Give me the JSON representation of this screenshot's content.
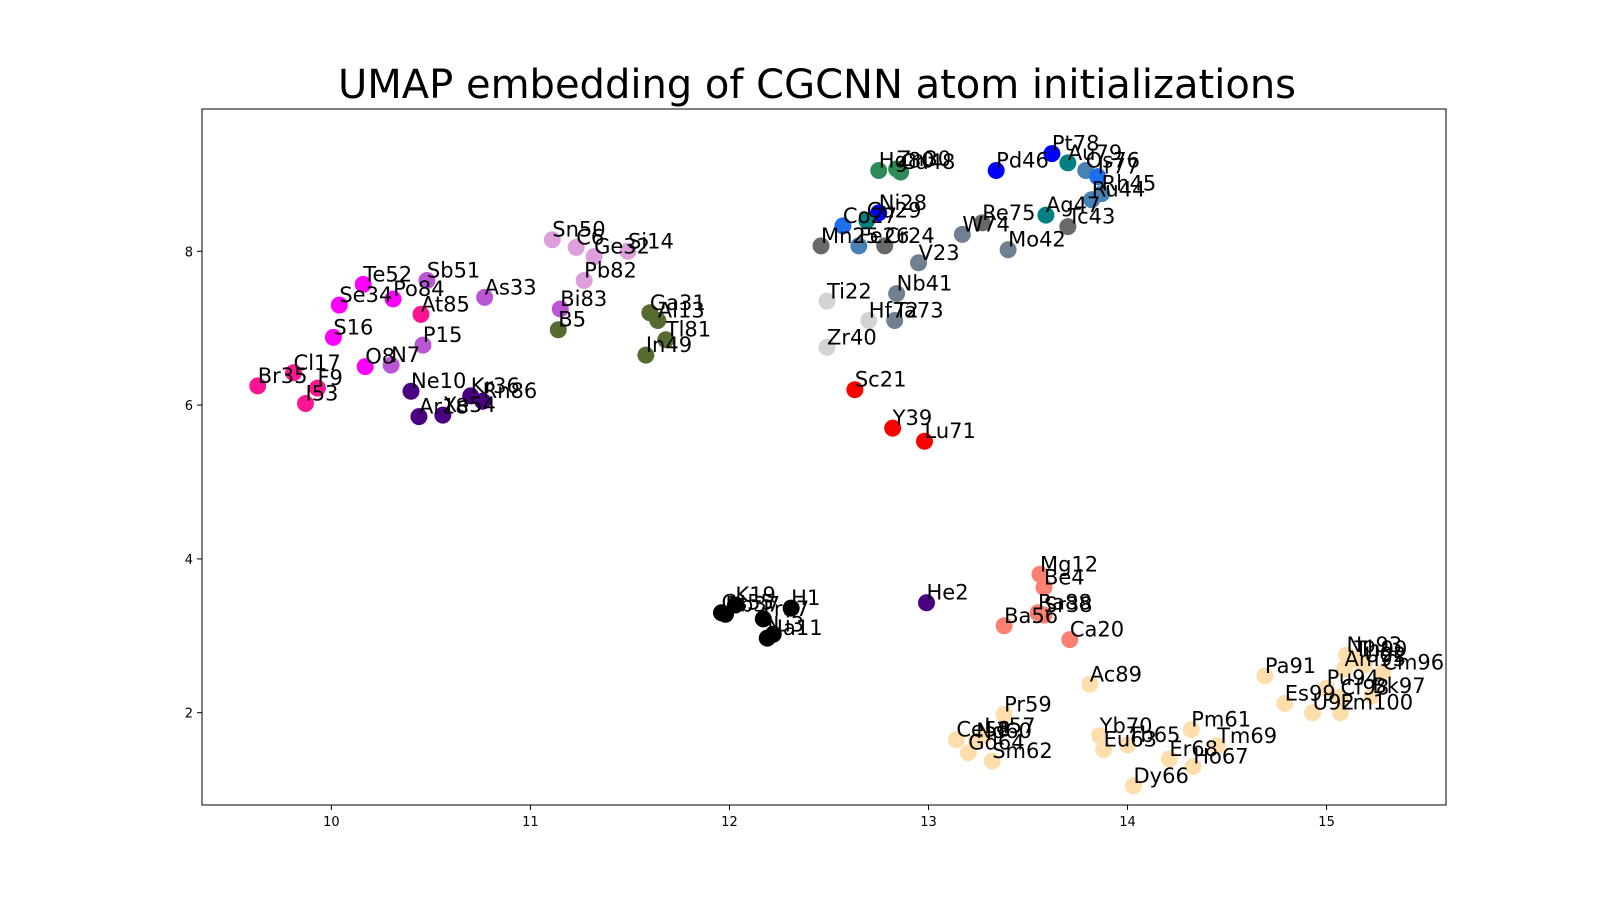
{
  "chart_data": {
    "type": "scatter",
    "title": "UMAP embedding of CGCNN atom initializations",
    "xlabel": "",
    "ylabel": "",
    "xlim": [
      9.35,
      15.6
    ],
    "ylim": [
      0.8,
      9.85
    ],
    "grid": false,
    "x_ticks": [
      10,
      11,
      12,
      13,
      14,
      15
    ],
    "y_ticks": [
      2,
      4,
      6,
      8
    ],
    "points": [
      {
        "label": "Pt78",
        "x": 13.62,
        "y": 9.27,
        "color": "#0000ff"
      },
      {
        "label": "Au79",
        "x": 13.7,
        "y": 9.15,
        "color": "#008080"
      },
      {
        "label": "Os76",
        "x": 13.79,
        "y": 9.05,
        "color": "#4682b4"
      },
      {
        "label": "Ir77",
        "x": 13.85,
        "y": 8.97,
        "color": "#1e6ff0"
      },
      {
        "label": "Pd46",
        "x": 13.34,
        "y": 9.05,
        "color": "#0000ff"
      },
      {
        "label": "Rh45",
        "x": 13.87,
        "y": 8.75,
        "color": "#4682b4"
      },
      {
        "label": "Ru44",
        "x": 13.82,
        "y": 8.67,
        "color": "#4682b4"
      },
      {
        "label": "Hg80",
        "x": 12.75,
        "y": 9.05,
        "color": "#2e8b57"
      },
      {
        "label": "Zn30",
        "x": 12.84,
        "y": 9.07,
        "color": "#2e8b57"
      },
      {
        "label": "Cd48",
        "x": 12.86,
        "y": 9.03,
        "color": "#2e8b57"
      },
      {
        "label": "Ag47",
        "x": 13.59,
        "y": 8.47,
        "color": "#008080"
      },
      {
        "label": "Tc43",
        "x": 13.7,
        "y": 8.32,
        "color": "#696969"
      },
      {
        "label": "Re75",
        "x": 13.27,
        "y": 8.37,
        "color": "#696969"
      },
      {
        "label": "W74",
        "x": 13.17,
        "y": 8.22,
        "color": "#708090"
      },
      {
        "label": "Mo42",
        "x": 13.4,
        "y": 8.02,
        "color": "#708090"
      },
      {
        "label": "Ni28",
        "x": 12.75,
        "y": 8.5,
        "color": "#0000ff"
      },
      {
        "label": "Cu29",
        "x": 12.69,
        "y": 8.4,
        "color": "#008080"
      },
      {
        "label": "Co27",
        "x": 12.57,
        "y": 8.33,
        "color": "#1e6ff0"
      },
      {
        "label": "Mn25",
        "x": 12.46,
        "y": 8.07,
        "color": "#696969"
      },
      {
        "label": "Fe26",
        "x": 12.65,
        "y": 8.07,
        "color": "#4682b4"
      },
      {
        "label": "Cr24",
        "x": 12.78,
        "y": 8.07,
        "color": "#696969"
      },
      {
        "label": "V23",
        "x": 12.95,
        "y": 7.85,
        "color": "#708090"
      },
      {
        "label": "Ti22",
        "x": 12.49,
        "y": 7.35,
        "color": "#d3d3d3"
      },
      {
        "label": "Nb41",
        "x": 12.84,
        "y": 7.45,
        "color": "#708090"
      },
      {
        "label": "Hf72",
        "x": 12.7,
        "y": 7.1,
        "color": "#d3d3d3"
      },
      {
        "label": "Ta73",
        "x": 12.83,
        "y": 7.1,
        "color": "#708090"
      },
      {
        "label": "Zr40",
        "x": 12.49,
        "y": 6.75,
        "color": "#d3d3d3"
      },
      {
        "label": "Sc21",
        "x": 12.63,
        "y": 6.2,
        "color": "#ff0000"
      },
      {
        "label": "Y39",
        "x": 12.82,
        "y": 5.7,
        "color": "#ff0000"
      },
      {
        "label": "Lu71",
        "x": 12.98,
        "y": 5.53,
        "color": "#ff0000"
      },
      {
        "label": "Sn50",
        "x": 11.11,
        "y": 8.15,
        "color": "#dda0dd"
      },
      {
        "label": "C6",
        "x": 11.23,
        "y": 8.05,
        "color": "#dda0dd"
      },
      {
        "label": "Ge32",
        "x": 11.32,
        "y": 7.93,
        "color": "#dda0dd"
      },
      {
        "label": "Si14",
        "x": 11.49,
        "y": 8.0,
        "color": "#dda0dd"
      },
      {
        "label": "Pb82",
        "x": 11.27,
        "y": 7.62,
        "color": "#dda0dd"
      },
      {
        "label": "Bi83",
        "x": 11.15,
        "y": 7.25,
        "color": "#ba55d3"
      },
      {
        "label": "B5",
        "x": 11.14,
        "y": 6.98,
        "color": "#556b2f"
      },
      {
        "label": "Ga31",
        "x": 11.6,
        "y": 7.2,
        "color": "#556b2f"
      },
      {
        "label": "Al13",
        "x": 11.64,
        "y": 7.1,
        "color": "#556b2f"
      },
      {
        "label": "Tl81",
        "x": 11.68,
        "y": 6.85,
        "color": "#556b2f"
      },
      {
        "label": "In49",
        "x": 11.58,
        "y": 6.65,
        "color": "#556b2f"
      },
      {
        "label": "Te52",
        "x": 10.16,
        "y": 7.57,
        "color": "#ff00ff"
      },
      {
        "label": "Sb51",
        "x": 10.48,
        "y": 7.62,
        "color": "#ba55d3"
      },
      {
        "label": "As33",
        "x": 10.77,
        "y": 7.4,
        "color": "#ba55d3"
      },
      {
        "label": "Se34",
        "x": 10.04,
        "y": 7.3,
        "color": "#ff00ff"
      },
      {
        "label": "Po84",
        "x": 10.31,
        "y": 7.38,
        "color": "#ff00ff"
      },
      {
        "label": "At85",
        "x": 10.45,
        "y": 7.18,
        "color": "#ff1493"
      },
      {
        "label": "S16",
        "x": 10.01,
        "y": 6.88,
        "color": "#ff00ff"
      },
      {
        "label": "P15",
        "x": 10.46,
        "y": 6.78,
        "color": "#ba55d3"
      },
      {
        "label": "O8",
        "x": 10.17,
        "y": 6.5,
        "color": "#ff00ff"
      },
      {
        "label": "N7",
        "x": 10.3,
        "y": 6.52,
        "color": "#ba55d3"
      },
      {
        "label": "Cl17",
        "x": 9.81,
        "y": 6.42,
        "color": "#ff1493"
      },
      {
        "label": "Br35",
        "x": 9.63,
        "y": 6.25,
        "color": "#ff1493"
      },
      {
        "label": "F9",
        "x": 9.93,
        "y": 6.22,
        "color": "#ff1493"
      },
      {
        "label": "I53",
        "x": 9.87,
        "y": 6.02,
        "color": "#ff1493"
      },
      {
        "label": "Ne10",
        "x": 10.4,
        "y": 6.18,
        "color": "#4b0082"
      },
      {
        "label": "Kr36",
        "x": 10.7,
        "y": 6.12,
        "color": "#4b0082"
      },
      {
        "label": "Rn86",
        "x": 10.76,
        "y": 6.05,
        "color": "#4b0082"
      },
      {
        "label": "Ar18",
        "x": 10.44,
        "y": 5.85,
        "color": "#4b0082"
      },
      {
        "label": "Xe54",
        "x": 10.56,
        "y": 5.87,
        "color": "#4b0082"
      },
      {
        "label": "K19",
        "x": 12.03,
        "y": 3.4,
        "color": "#000000"
      },
      {
        "label": "Rb37",
        "x": 11.98,
        "y": 3.28,
        "color": "#000000"
      },
      {
        "label": "Cs55",
        "x": 11.96,
        "y": 3.3,
        "color": "#000000"
      },
      {
        "label": "Fr87",
        "x": 12.17,
        "y": 3.22,
        "color": "#000000"
      },
      {
        "label": "H1",
        "x": 12.31,
        "y": 3.36,
        "color": "#000000"
      },
      {
        "label": "Li3",
        "x": 12.22,
        "y": 3.02,
        "color": "#000000"
      },
      {
        "label": "Na11",
        "x": 12.19,
        "y": 2.97,
        "color": "#000000"
      },
      {
        "label": "He2",
        "x": 12.99,
        "y": 3.43,
        "color": "#4b0082"
      },
      {
        "label": "Mg12",
        "x": 13.56,
        "y": 3.8,
        "color": "#fa8072"
      },
      {
        "label": "Be4",
        "x": 13.58,
        "y": 3.63,
        "color": "#fa8072"
      },
      {
        "label": "Ra88",
        "x": 13.55,
        "y": 3.3,
        "color": "#fa8072"
      },
      {
        "label": "Sr38",
        "x": 13.58,
        "y": 3.27,
        "color": "#fa8072"
      },
      {
        "label": "Ba56",
        "x": 13.38,
        "y": 3.13,
        "color": "#fa8072"
      },
      {
        "label": "Ca20",
        "x": 13.71,
        "y": 2.95,
        "color": "#fa8072"
      },
      {
        "label": "Ac89",
        "x": 13.81,
        "y": 2.37,
        "color": "#ffdead"
      },
      {
        "label": "Pr59",
        "x": 13.38,
        "y": 1.98,
        "color": "#ffdead"
      },
      {
        "label": "La57",
        "x": 13.28,
        "y": 1.7,
        "color": "#ffdead"
      },
      {
        "label": "Ce58",
        "x": 13.14,
        "y": 1.65,
        "color": "#ffdead"
      },
      {
        "label": "Nd60",
        "x": 13.24,
        "y": 1.63,
        "color": "#ffdead"
      },
      {
        "label": "Gd64",
        "x": 13.2,
        "y": 1.48,
        "color": "#ffdead"
      },
      {
        "label": "Sm62",
        "x": 13.32,
        "y": 1.37,
        "color": "#ffdead"
      },
      {
        "label": "Yb70",
        "x": 13.86,
        "y": 1.7,
        "color": "#ffdead"
      },
      {
        "label": "Eu63",
        "x": 13.88,
        "y": 1.52,
        "color": "#ffdead"
      },
      {
        "label": "Tb65",
        "x": 14.0,
        "y": 1.58,
        "color": "#ffdead"
      },
      {
        "label": "Er68",
        "x": 14.21,
        "y": 1.4,
        "color": "#ffdead"
      },
      {
        "label": "Pm61",
        "x": 14.32,
        "y": 1.78,
        "color": "#ffdead"
      },
      {
        "label": "Tm69",
        "x": 14.45,
        "y": 1.57,
        "color": "#ffdead"
      },
      {
        "label": "Ho67",
        "x": 14.33,
        "y": 1.3,
        "color": "#ffdead"
      },
      {
        "label": "Dy66",
        "x": 14.03,
        "y": 1.05,
        "color": "#ffdead"
      },
      {
        "label": "Pa91",
        "x": 14.69,
        "y": 2.48,
        "color": "#ffdead"
      },
      {
        "label": "Np93",
        "x": 15.1,
        "y": 2.75,
        "color": "#ffdead"
      },
      {
        "label": "Th90",
        "x": 15.14,
        "y": 2.7,
        "color": "#ffdead"
      },
      {
        "label": "Am95",
        "x": 15.09,
        "y": 2.57,
        "color": "#ffdead"
      },
      {
        "label": "U92",
        "x": 15.19,
        "y": 2.62,
        "color": "#ffdead"
      },
      {
        "label": "Cm96",
        "x": 15.28,
        "y": 2.52,
        "color": "#ffdead"
      },
      {
        "label": "Es99",
        "x": 14.79,
        "y": 2.12,
        "color": "#ffdead"
      },
      {
        "label": "Pu94",
        "x": 15.0,
        "y": 2.32,
        "color": "#ffdead"
      },
      {
        "label": "Cf98",
        "x": 15.07,
        "y": 2.2,
        "color": "#ffdead"
      },
      {
        "label": "Bk97",
        "x": 15.23,
        "y": 2.22,
        "color": "#ffdead"
      },
      {
        "label": "U92",
        "x": 14.93,
        "y": 2.0,
        "color": "#ffdead"
      },
      {
        "label": "Fm100",
        "x": 15.07,
        "y": 2.0,
        "color": "#ffdead"
      }
    ]
  }
}
